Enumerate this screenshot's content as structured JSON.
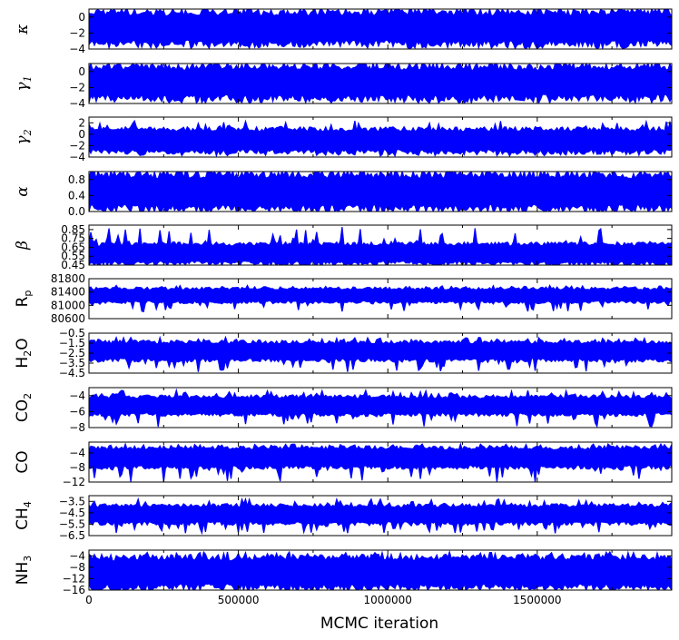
{
  "chart_data": {
    "type": "line",
    "xlabel": "MCMC iteration",
    "xlim": [
      0,
      1950000
    ],
    "xticks": [
      "0",
      "500000",
      "1000000",
      "1500000"
    ],
    "xtick_values": [
      0,
      500000,
      1000000,
      1500000
    ],
    "series_color": "#0000ff",
    "grid": false,
    "panels": [
      {
        "name": "κ",
        "sub": "",
        "ylim": [
          -4,
          1
        ],
        "yticks": [
          {
            "v": 0,
            "l": "0"
          },
          {
            "v": -2,
            "l": "−2"
          },
          {
            "v": -4,
            "l": "−4"
          }
        ],
        "band": [
          -3.7,
          1.0
        ],
        "spike_lo": -3.95,
        "spike_hi": 1.0
      },
      {
        "name": "γ",
        "sub": "1",
        "ylim": [
          -4,
          1
        ],
        "yticks": [
          {
            "v": 0,
            "l": "0"
          },
          {
            "v": -2,
            "l": "−2"
          },
          {
            "v": -4,
            "l": "−4"
          }
        ],
        "band": [
          -3.7,
          1.0
        ],
        "spike_lo": -3.95,
        "spike_hi": 1.0
      },
      {
        "name": "γ",
        "sub": "2",
        "ylim": [
          -4,
          3
        ],
        "yticks": [
          {
            "v": 2,
            "l": "2"
          },
          {
            "v": 0,
            "l": "0"
          },
          {
            "v": -2,
            "l": "−2"
          },
          {
            "v": -4,
            "l": "−4"
          }
        ],
        "band": [
          -3.5,
          1.3
        ],
        "spike_lo": -3.8,
        "spike_hi": 2.4
      },
      {
        "name": "α",
        "sub": "",
        "ylim": [
          0,
          1
        ],
        "yticks": [
          {
            "v": 0.8,
            "l": "0.8"
          },
          {
            "v": 0.4,
            "l": "0.4"
          },
          {
            "v": 0.0,
            "l": "0.0"
          }
        ],
        "band": [
          0.0,
          1.0
        ],
        "spike_lo": 0.0,
        "spike_hi": 1.0
      },
      {
        "name": "β",
        "sub": "",
        "ylim": [
          0.45,
          0.9
        ],
        "yticks": [
          {
            "v": 0.85,
            "l": "0.85"
          },
          {
            "v": 0.75,
            "l": "0.75"
          },
          {
            "v": 0.65,
            "l": "0.65"
          },
          {
            "v": 0.55,
            "l": "0.55"
          },
          {
            "v": 0.45,
            "l": "0.45"
          }
        ],
        "band": [
          0.45,
          0.71
        ],
        "spike_lo": 0.45,
        "spike_hi": 0.88
      },
      {
        "name": "R",
        "sub": "p",
        "ylim": [
          80600,
          81800
        ],
        "yticks": [
          {
            "v": 81800,
            "l": "81800"
          },
          {
            "v": 81400,
            "l": "81400"
          },
          {
            "v": 81000,
            "l": "81000"
          },
          {
            "v": 80600,
            "l": "80600"
          }
        ],
        "band": [
          81050,
          81550
        ],
        "spike_lo": 80800,
        "spike_hi": 81600
      },
      {
        "name": "H",
        "sub": "2",
        "tail": "O",
        "ylim": [
          -4.5,
          -0.5
        ],
        "yticks": [
          {
            "v": -0.5,
            "l": "−0.5"
          },
          {
            "v": -1.5,
            "l": "−1.5"
          },
          {
            "v": -2.5,
            "l": "−2.5"
          },
          {
            "v": -3.5,
            "l": "−3.5"
          },
          {
            "v": -4.5,
            "l": "−4.5"
          }
        ],
        "band": [
          -3.4,
          -1.2
        ],
        "spike_lo": -4.4,
        "spike_hi": -0.9
      },
      {
        "name": "CO",
        "sub": "2",
        "ylim": [
          -8,
          -3
        ],
        "yticks": [
          {
            "v": -4,
            "l": "−4"
          },
          {
            "v": -6,
            "l": "−6"
          },
          {
            "v": -8,
            "l": "−8"
          }
        ],
        "band": [
          -6.6,
          -3.9
        ],
        "spike_lo": -7.9,
        "spike_hi": -3.3
      },
      {
        "name": "CO",
        "sub": "",
        "ylim": [
          -12,
          -1
        ],
        "yticks": [
          {
            "v": -4,
            "l": "−4"
          },
          {
            "v": -8,
            "l": "−8"
          },
          {
            "v": -12,
            "l": "−12"
          }
        ],
        "band": [
          -8.5,
          -2.0
        ],
        "spike_lo": -12.0,
        "spike_hi": -1.5
      },
      {
        "name": "CH",
        "sub": "4",
        "ylim": [
          -6.5,
          -3
        ],
        "yticks": [
          {
            "v": -3.5,
            "l": "−3.5"
          },
          {
            "v": -4.5,
            "l": "−4.5"
          },
          {
            "v": -5.5,
            "l": "−5.5"
          },
          {
            "v": -6.5,
            "l": "−6.5"
          }
        ],
        "band": [
          -5.6,
          -3.7
        ],
        "spike_lo": -6.3,
        "spike_hi": -3.3
      },
      {
        "name": "NH",
        "sub": "3",
        "ylim": [
          -16,
          -2
        ],
        "yticks": [
          {
            "v": -4,
            "l": "−4"
          },
          {
            "v": -8,
            "l": "−8"
          },
          {
            "v": -12,
            "l": "−12"
          },
          {
            "v": -16,
            "l": "−16"
          }
        ],
        "band": [
          -16,
          -3.5
        ],
        "spike_lo": -16,
        "spike_hi": -2.5
      }
    ]
  }
}
